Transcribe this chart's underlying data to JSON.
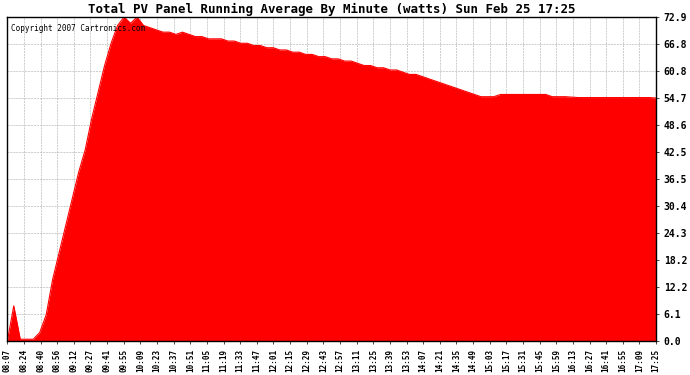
{
  "title": "Total PV Panel Running Average By Minute (watts) Sun Feb 25 17:25",
  "copyright": "Copyright 2007 Cartronics.com",
  "fill_color": "#FF0000",
  "line_color": "#FF0000",
  "background_color": "#FFFFFF",
  "grid_color": "#AAAAAA",
  "yticks": [
    0.0,
    6.1,
    12.2,
    18.2,
    24.3,
    30.4,
    36.5,
    42.5,
    48.6,
    54.7,
    60.8,
    66.8,
    72.9
  ],
  "ylim": [
    0.0,
    72.9
  ],
  "xtick_labels": [
    "08:07",
    "08:24",
    "08:40",
    "08:56",
    "09:12",
    "09:27",
    "09:41",
    "09:55",
    "10:09",
    "10:23",
    "10:37",
    "10:51",
    "11:05",
    "11:19",
    "11:33",
    "11:47",
    "12:01",
    "12:15",
    "12:29",
    "12:43",
    "12:57",
    "13:11",
    "13:25",
    "13:39",
    "13:53",
    "14:07",
    "14:21",
    "14:35",
    "14:49",
    "15:03",
    "15:17",
    "15:31",
    "15:45",
    "15:59",
    "16:13",
    "16:27",
    "16:41",
    "16:55",
    "17:09",
    "17:25"
  ],
  "curve_y": [
    0.0,
    8.0,
    0.5,
    0.5,
    0.5,
    2.0,
    6.0,
    14.0,
    20.0,
    26.0,
    32.0,
    38.0,
    43.0,
    50.0,
    56.0,
    62.0,
    67.0,
    71.0,
    72.9,
    71.5,
    72.9,
    71.0,
    70.5,
    70.0,
    69.5,
    69.5,
    69.0,
    69.5,
    69.0,
    68.5,
    68.5,
    68.0,
    68.0,
    68.0,
    67.5,
    67.5,
    67.0,
    67.0,
    66.5,
    66.5,
    66.0,
    66.0,
    65.5,
    65.5,
    65.0,
    65.0,
    64.5,
    64.5,
    64.0,
    64.0,
    63.5,
    63.5,
    63.0,
    63.0,
    62.5,
    62.0,
    62.0,
    61.5,
    61.5,
    61.0,
    61.0,
    60.5,
    60.0,
    60.0,
    59.5,
    59.0,
    58.5,
    58.0,
    57.5,
    57.0,
    56.5,
    56.0,
    55.5,
    55.0,
    55.0,
    55.0,
    55.5,
    55.5,
    55.5,
    55.5,
    55.5,
    55.5,
    55.5,
    55.5,
    55.0,
    55.0,
    55.0,
    54.9,
    54.8,
    54.8,
    54.8,
    54.8,
    54.8,
    54.8,
    54.8,
    54.8,
    54.8,
    54.8,
    54.8,
    54.8,
    54.7
  ]
}
